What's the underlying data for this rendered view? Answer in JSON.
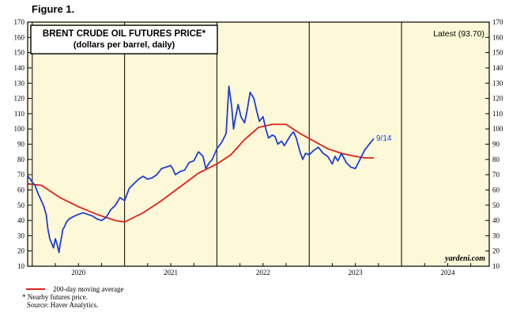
{
  "figure_label": "Figure 1.",
  "title_line1": "BRENT CRUDE OIL FUTURES PRICE*",
  "title_line2": "(dollars per barrel, daily)",
  "latest_label": "Latest (93.70)",
  "end_annotation": "9/14",
  "watermark": "yardeni.com",
  "legend": {
    "ma_label": "200-day moving average",
    "footnote": "*  Nearby futures price.",
    "source": "Source: Haver Analytics."
  },
  "colors": {
    "price": "#1f3fd0",
    "moving_average": "#e0201b",
    "plot_background": "#fdf9d8"
  },
  "chart_data": {
    "type": "line",
    "y_ticks": [
      10,
      20,
      30,
      40,
      50,
      60,
      70,
      80,
      90,
      100,
      110,
      120,
      130,
      140,
      150,
      160,
      170
    ],
    "ylim": [
      10,
      170
    ],
    "x_range": [
      2019.95,
      2024.95
    ],
    "x_tick_labels": [
      "2020",
      "2021",
      "2022",
      "2023",
      "2024"
    ],
    "series": [
      {
        "role": "price",
        "x": [
          2019.95,
          2019.98,
          2020.0,
          2020.03,
          2020.06,
          2020.09,
          2020.12,
          2020.15,
          2020.17,
          2020.19,
          2020.21,
          2020.23,
          2020.25,
          2020.27,
          2020.29,
          2020.3,
          2020.32,
          2020.33,
          2020.35,
          2020.37,
          2020.4,
          2020.43,
          2020.46,
          2020.5,
          2020.55,
          2020.6,
          2020.65,
          2020.7,
          2020.75,
          2020.8,
          2020.85,
          2020.9,
          2020.95,
          2021.0,
          2021.05,
          2021.1,
          2021.15,
          2021.2,
          2021.25,
          2021.3,
          2021.35,
          2021.4,
          2021.45,
          2021.5,
          2021.52,
          2021.55,
          2021.6,
          2021.65,
          2021.7,
          2021.75,
          2021.8,
          2021.85,
          2021.88,
          2021.92,
          2021.95,
          2022.0,
          2022.05,
          2022.1,
          2022.13,
          2022.16,
          2022.18,
          2022.2,
          2022.23,
          2022.26,
          2022.3,
          2022.33,
          2022.36,
          2022.4,
          2022.43,
          2022.46,
          2022.5,
          2022.53,
          2022.56,
          2022.6,
          2022.63,
          2022.66,
          2022.7,
          2022.73,
          2022.76,
          2022.8,
          2022.83,
          2022.86,
          2022.9,
          2022.93,
          2022.96,
          2023.0,
          2023.05,
          2023.1,
          2023.15,
          2023.2,
          2023.25,
          2023.28,
          2023.31,
          2023.35,
          2023.4,
          2023.45,
          2023.5,
          2023.55,
          2023.6,
          2023.65,
          2023.7
        ],
        "y": [
          69,
          67,
          65,
          63,
          58,
          54,
          50,
          44,
          34,
          28,
          25,
          22,
          28,
          24,
          19,
          24,
          30,
          34,
          36,
          39,
          41,
          42,
          43,
          44,
          45,
          44,
          43,
          41,
          40,
          42,
          47,
          50,
          55,
          53,
          61,
          64,
          67,
          69,
          67,
          68,
          70,
          74,
          75,
          76,
          74,
          70,
          72,
          73,
          78,
          79,
          85,
          82,
          74,
          78,
          80,
          87,
          91,
          97,
          128,
          115,
          100,
          107,
          116,
          108,
          104,
          113,
          124,
          120,
          112,
          105,
          108,
          100,
          94,
          96,
          95,
          90,
          92,
          89,
          92,
          96,
          98,
          94,
          85,
          80,
          84,
          83,
          86,
          88,
          84,
          82,
          77,
          82,
          79,
          84,
          78,
          75,
          74,
          80,
          86,
          90,
          93.7
        ]
      },
      {
        "role": "moving_average",
        "name": "200-day moving average",
        "x": [
          2019.95,
          2020.1,
          2020.3,
          2020.5,
          2020.7,
          2020.9,
          2021.0,
          2021.2,
          2021.4,
          2021.6,
          2021.8,
          2022.0,
          2022.15,
          2022.3,
          2022.45,
          2022.6,
          2022.75,
          2022.9,
          2023.05,
          2023.2,
          2023.35,
          2023.5,
          2023.6,
          2023.7
        ],
        "y": [
          64,
          63,
          55,
          49,
          44,
          40,
          39,
          45,
          53,
          62,
          71,
          77,
          83,
          93,
          101,
          103,
          103,
          97,
          92,
          87,
          84,
          82,
          81,
          81
        ]
      }
    ]
  }
}
